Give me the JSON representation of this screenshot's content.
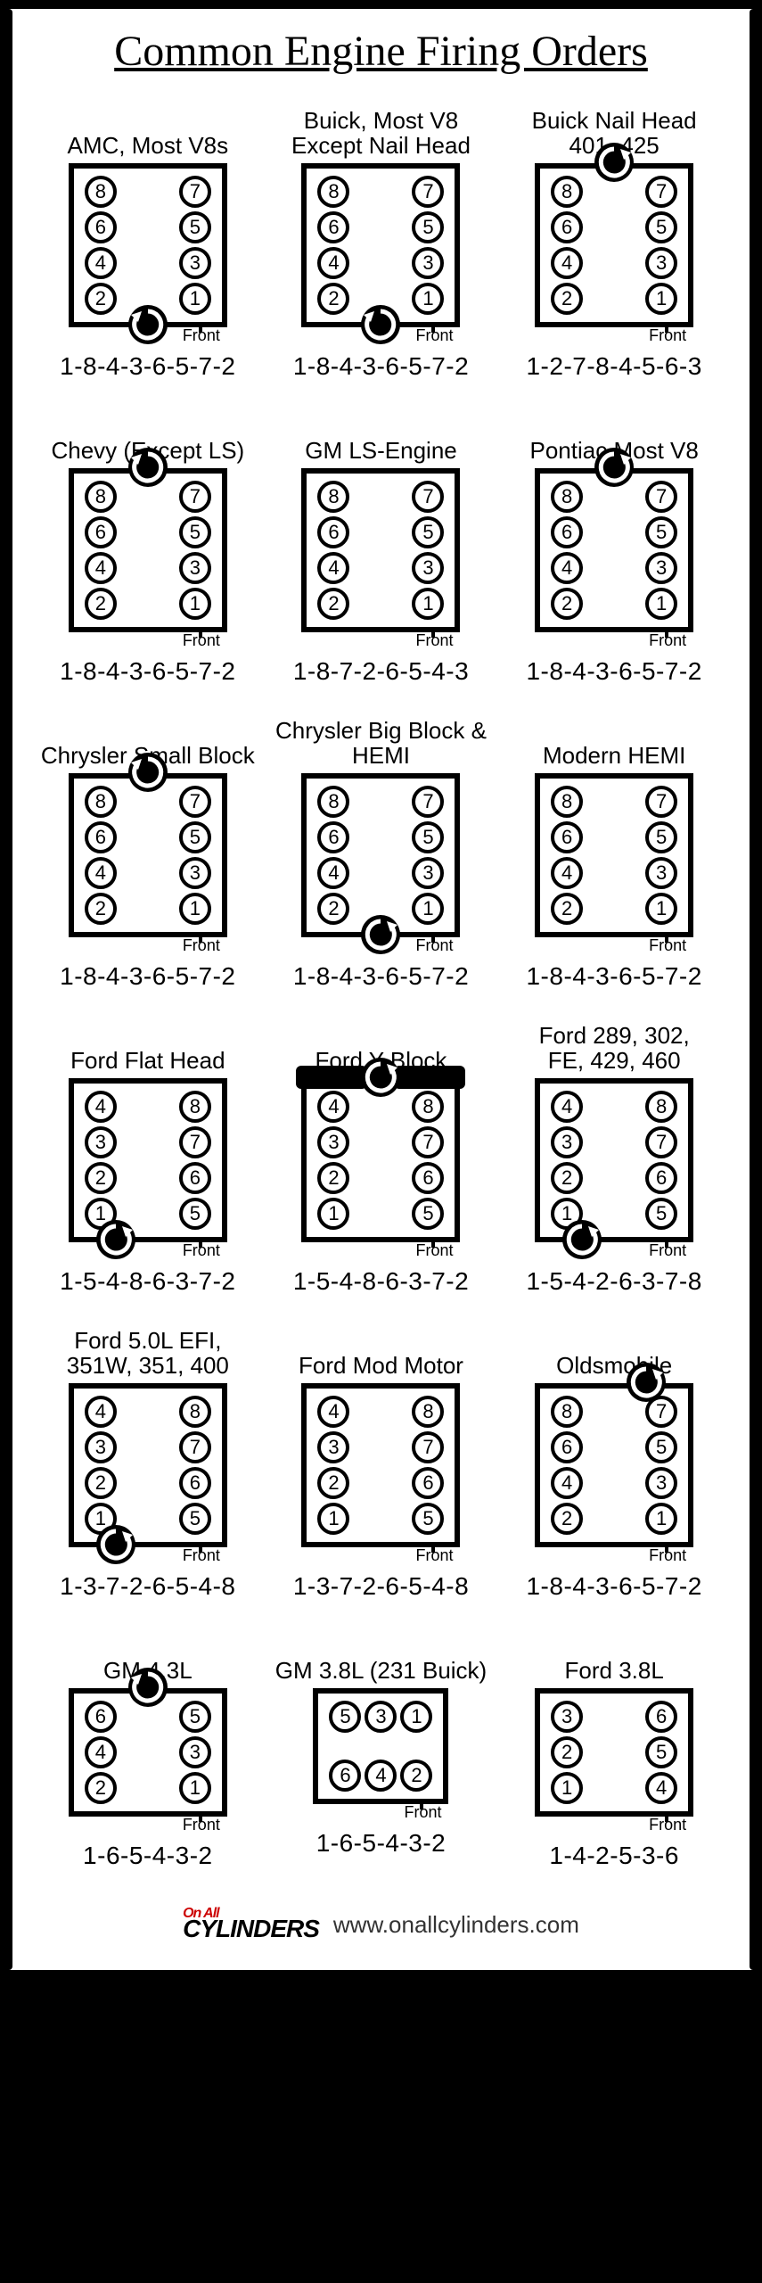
{
  "title": "Common Engine Firing Orders",
  "front_label": "Front",
  "footer": {
    "logo_small": "On All",
    "logo_big": "CYLINDERS",
    "url": "www.onallcylinders.com"
  },
  "engines": [
    {
      "name": "AMC, Most V8s",
      "left_bank": [
        8,
        6,
        4,
        2
      ],
      "right_bank": [
        7,
        5,
        3,
        1
      ],
      "firing": "1-8-4-3-6-5-7-2",
      "rotation": "cw",
      "rot_pos": "bottom"
    },
    {
      "name": "Buick, Most V8\nExcept Nail Head",
      "left_bank": [
        8,
        6,
        4,
        2
      ],
      "right_bank": [
        7,
        5,
        3,
        1
      ],
      "firing": "1-8-4-3-6-5-7-2",
      "rotation": "cw",
      "rot_pos": "bottom"
    },
    {
      "name": "Buick Nail Head\n401, 425",
      "left_bank": [
        8,
        6,
        4,
        2
      ],
      "right_bank": [
        7,
        5,
        3,
        1
      ],
      "firing": "1-2-7-8-4-5-6-3",
      "rotation": "ccw",
      "rot_pos": "top"
    },
    {
      "name": "Chevy (Except LS)",
      "left_bank": [
        8,
        6,
        4,
        2
      ],
      "right_bank": [
        7,
        5,
        3,
        1
      ],
      "firing": "1-8-4-3-6-5-7-2",
      "rotation": "cw",
      "rot_pos": "top"
    },
    {
      "name": "GM LS-Engine",
      "left_bank": [
        8,
        6,
        4,
        2
      ],
      "right_bank": [
        7,
        5,
        3,
        1
      ],
      "firing": "1-8-7-2-6-5-4-3",
      "rotation": "none",
      "rot_pos": ""
    },
    {
      "name": "Pontiac Most V8",
      "left_bank": [
        8,
        6,
        4,
        2
      ],
      "right_bank": [
        7,
        5,
        3,
        1
      ],
      "firing": "1-8-4-3-6-5-7-2",
      "rotation": "ccw",
      "rot_pos": "top"
    },
    {
      "name": "Chrysler Small Block",
      "left_bank": [
        8,
        6,
        4,
        2
      ],
      "right_bank": [
        7,
        5,
        3,
        1
      ],
      "firing": "1-8-4-3-6-5-7-2",
      "rotation": "cw",
      "rot_pos": "top"
    },
    {
      "name": "Chrysler Big Block & HEMI",
      "left_bank": [
        8,
        6,
        4,
        2
      ],
      "right_bank": [
        7,
        5,
        3,
        1
      ],
      "firing": "1-8-4-3-6-5-7-2",
      "rotation": "ccw",
      "rot_pos": "bottom"
    },
    {
      "name": "Modern HEMI",
      "left_bank": [
        8,
        6,
        4,
        2
      ],
      "right_bank": [
        7,
        5,
        3,
        1
      ],
      "firing": "1-8-4-3-6-5-7-2",
      "rotation": "none",
      "rot_pos": ""
    },
    {
      "name": "Ford Flat Head",
      "left_bank": [
        4,
        3,
        2,
        1
      ],
      "right_bank": [
        8,
        7,
        6,
        5
      ],
      "firing": "1-5-4-8-6-3-7-2",
      "rotation": "ccw",
      "rot_pos": "bottom-left"
    },
    {
      "name": "Ford Y Block",
      "left_bank": [
        4,
        3,
        2,
        1
      ],
      "right_bank": [
        8,
        7,
        6,
        5
      ],
      "firing": "1-5-4-8-6-3-7-2",
      "rotation": "ccw",
      "rot_pos": "top",
      "blobs": true
    },
    {
      "name": "Ford 289, 302,\nFE, 429, 460",
      "left_bank": [
        4,
        3,
        2,
        1
      ],
      "right_bank": [
        8,
        7,
        6,
        5
      ],
      "firing": "1-5-4-2-6-3-7-8",
      "rotation": "ccw",
      "rot_pos": "bottom-left"
    },
    {
      "name": "Ford 5.0L EFI,\n351W, 351, 400",
      "left_bank": [
        4,
        3,
        2,
        1
      ],
      "right_bank": [
        8,
        7,
        6,
        5
      ],
      "firing": "1-3-7-2-6-5-4-8",
      "rotation": "ccw",
      "rot_pos": "bottom-left"
    },
    {
      "name": "Ford Mod Motor",
      "left_bank": [
        4,
        3,
        2,
        1
      ],
      "right_bank": [
        8,
        7,
        6,
        5
      ],
      "firing": "1-3-7-2-6-5-4-8",
      "rotation": "none",
      "rot_pos": ""
    },
    {
      "name": "Oldsmobile",
      "left_bank": [
        8,
        6,
        4,
        2
      ],
      "right_bank": [
        7,
        5,
        3,
        1
      ],
      "firing": "1-8-4-3-6-5-7-2",
      "rotation": "ccw",
      "rot_pos": "top-right"
    },
    {
      "name": "GM 4.3L",
      "left_bank": [
        6,
        4,
        2
      ],
      "right_bank": [
        5,
        3,
        1
      ],
      "firing": "1-6-5-4-3-2",
      "rotation": "cw",
      "rot_pos": "top"
    },
    {
      "name": "GM 3.8L (231 Buick)",
      "layout": "flat",
      "top_bank": [
        5,
        3,
        1
      ],
      "bottom_bank": [
        6,
        4,
        2
      ],
      "firing": "1-6-5-4-3-2",
      "rotation": "none",
      "rot_pos": ""
    },
    {
      "name": "Ford 3.8L",
      "left_bank": [
        3,
        2,
        1
      ],
      "right_bank": [
        6,
        5,
        4
      ],
      "firing": "1-4-2-5-3-6",
      "rotation": "none",
      "rot_pos": ""
    }
  ]
}
